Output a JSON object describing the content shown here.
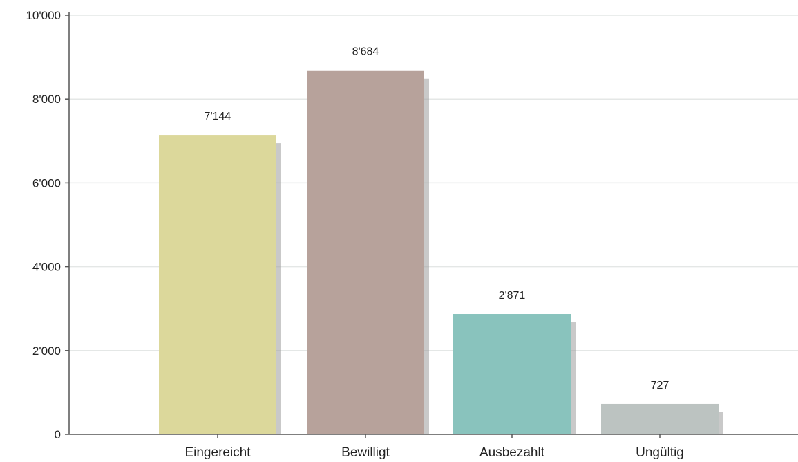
{
  "chart_data": {
    "type": "bar",
    "categories": [
      "Eingereicht",
      "Bewilligt",
      "Ausbezahlt",
      "Ungültig"
    ],
    "values": [
      7144,
      8684,
      2871,
      727
    ],
    "value_labels": [
      "7'144",
      "8'684",
      "2'871",
      "727"
    ],
    "colors": [
      "#dcd89b",
      "#b7a29b",
      "#89c3bd",
      "#bcc3c1"
    ],
    "ylim": [
      0,
      10000
    ],
    "yticks": [
      0,
      2000,
      4000,
      6000,
      8000,
      10000
    ],
    "ytick_labels": [
      "0",
      "2'000",
      "4'000",
      "6'000",
      "8'000",
      "10'000"
    ],
    "grid": true,
    "title": "",
    "xlabel": "",
    "ylabel": ""
  }
}
